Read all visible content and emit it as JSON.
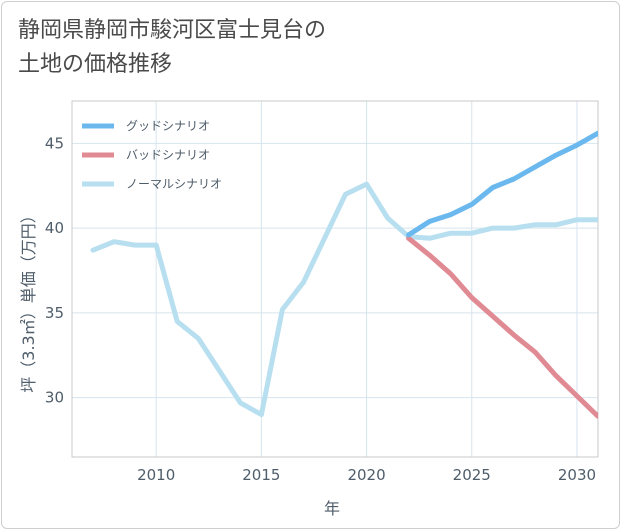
{
  "title": "静岡県静岡市駿河区富士見台の\n土地の価格推移",
  "chart_data": {
    "type": "line",
    "xlabel": "年",
    "ylabel": "坪（3.3㎡）単価（万円）",
    "xlim": [
      2006,
      2031
    ],
    "ylim": [
      26.5,
      47.5
    ],
    "xticks": [
      2010,
      2015,
      2020,
      2025,
      2030
    ],
    "yticks": [
      30,
      35,
      40,
      45
    ],
    "grid": true,
    "legend_position": "top-left",
    "series": [
      {
        "name": "グッドシナリオ",
        "color": "#6bb8ef",
        "x": [
          2022,
          2023,
          2024,
          2025,
          2026,
          2027,
          2028,
          2029,
          2030,
          2031
        ],
        "y": [
          39.6,
          40.4,
          40.8,
          41.4,
          42.4,
          42.9,
          43.6,
          44.3,
          44.9,
          45.6
        ]
      },
      {
        "name": "バッドシナリオ",
        "color": "#e08a93",
        "x": [
          2022,
          2023,
          2024,
          2025,
          2026,
          2027,
          2028,
          2029,
          2030,
          2031
        ],
        "y": [
          39.4,
          38.4,
          37.3,
          35.9,
          34.8,
          33.7,
          32.7,
          31.3,
          30.1,
          28.9
        ]
      },
      {
        "name": "ノーマルシナリオ",
        "color": "#b8dff0",
        "x": [
          2007,
          2008,
          2009,
          2010,
          2011,
          2012,
          2013,
          2014,
          2015,
          2016,
          2017,
          2018,
          2019,
          2020,
          2021,
          2022,
          2023,
          2024,
          2025,
          2026,
          2027,
          2028,
          2029,
          2030,
          2031
        ],
        "y": [
          38.7,
          39.2,
          39.0,
          39.0,
          34.5,
          33.5,
          31.6,
          29.7,
          29.0,
          35.2,
          36.8,
          39.4,
          42.0,
          42.6,
          40.6,
          39.5,
          39.4,
          39.7,
          39.7,
          40.0,
          40.0,
          40.2,
          40.2,
          40.5,
          40.5
        ]
      }
    ]
  }
}
